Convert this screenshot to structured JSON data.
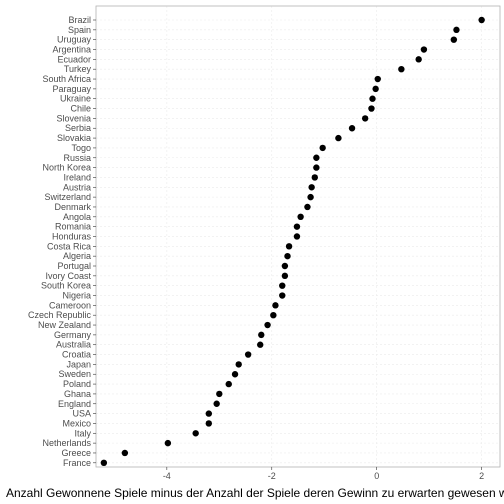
{
  "chart_data": {
    "type": "scatter",
    "title": "",
    "xlabel": "Anzahl Gewonnene Spiele minus der Anzahl der Spiele deren Gewinn zu erwarten gewesen wäre",
    "ylabel": "",
    "xlim": [
      -5.35,
      2.35
    ],
    "xticks": [
      -4,
      -2,
      0,
      2
    ],
    "xtick_labels": [
      "-4",
      "-2",
      "0",
      "2"
    ],
    "grid": true,
    "legend": "none",
    "point_color": "#000000",
    "panel_border_color": "#b3b3b3",
    "grid_color": "#ebebeb",
    "categories": [
      "Brazil",
      "Spain",
      "Uruguay",
      "Argentina",
      "Ecuador",
      "Turkey",
      "South Africa",
      "Paraguay",
      "Ukraine",
      "Chile",
      "Slovenia",
      "Serbia",
      "Slovakia",
      "Togo",
      "Russia",
      "North Korea",
      "Ireland",
      "Austria",
      "Switzerland",
      "Denmark",
      "Angola",
      "Romania",
      "Honduras",
      "Costa Rica",
      "Algeria",
      "Portugal",
      "Ivory Coast",
      "South Korea",
      "Nigeria",
      "Cameroon",
      "Czech Republic",
      "New Zealand",
      "Germany",
      "Australia",
      "Croatia",
      "Japan",
      "Sweden",
      "Poland",
      "Ghana",
      "England",
      "USA",
      "Mexico",
      "Italy",
      "Netherlands",
      "Greece",
      "France"
    ],
    "values": [
      2.0,
      1.52,
      1.47,
      0.9,
      0.8,
      0.47,
      0.02,
      -0.02,
      -0.08,
      -0.1,
      -0.22,
      -0.47,
      -0.73,
      -1.03,
      -1.15,
      -1.15,
      -1.18,
      -1.24,
      -1.26,
      -1.32,
      -1.45,
      -1.52,
      -1.52,
      -1.67,
      -1.7,
      -1.75,
      -1.75,
      -1.8,
      -1.8,
      -1.93,
      -1.97,
      -2.08,
      -2.2,
      -2.22,
      -2.45,
      -2.63,
      -2.7,
      -2.82,
      -3.0,
      -3.05,
      -3.2,
      -3.2,
      -3.45,
      -3.98,
      -4.8,
      -5.2
    ]
  }
}
